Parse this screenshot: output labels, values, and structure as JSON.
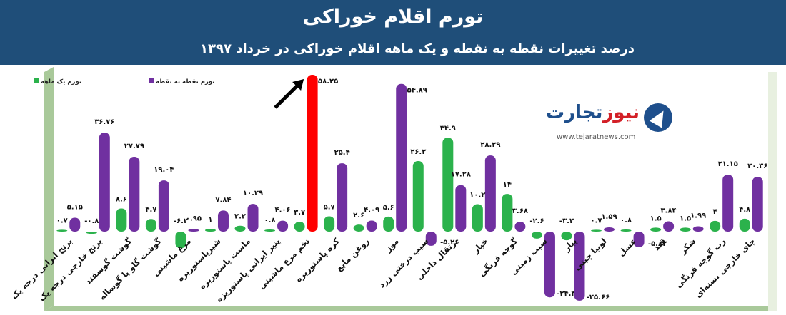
{
  "header": {
    "title": "تورم اقلام خوراکی",
    "subtitle": "درصد تغییرات نقطه به نقطه و یک ماهه اقلام خوراکی در خرداد ۱۳۹۷"
  },
  "logo": {
    "name_red": "نیوز",
    "name_blue": "تجارت",
    "url": "www.tejaratnews.com"
  },
  "colors": {
    "monthly": "#2bb24c",
    "point": "#7030a0",
    "highlight": "#ff0000",
    "header_bg": "#1f4e79",
    "floor": "#a9c99a"
  },
  "chart_data": {
    "type": "bar",
    "title": "",
    "legend_position": "top-left",
    "categories": [
      "برنج ایرانی درجه یک",
      "برنج خارجی درجه یک",
      "گوشت گوسفند",
      "گوشت گاو یا گوساله",
      "مرغ ماشینی",
      "شیرپاستوریزه",
      "ماست پاستوریزه",
      "پنیر ایرانی پاستوریزه",
      "تخم مرغ ماشینی",
      "کره پاستوریزه",
      "روغن مایع",
      "موز",
      "سیب درختی زرد",
      "پرتقال داخلی",
      "خیار",
      "گوجه فرنگی",
      "سیب زمینی",
      "پیاز",
      "لوبیا چیتی",
      "عسل",
      "قند",
      "شکر",
      "رب گوجه فرنگی",
      "چای خارجی بسته‌ای"
    ],
    "category_labels": [
      "برنج ایرانی درجه یک",
      "برنج خارجی درجه یک",
      "گوشت گوسفند",
      "گوشت گاو یا گوساله",
      "مرغ ماشینی",
      "شیرپاستوریزه",
      "ماست پاستوریزه",
      "پنیر ایرانی پاستوریزه",
      "تخم مرغ ماشینی",
      "کره پاستوریزه",
      "روغن مایع",
      "موز",
      "سیب درختی زرد",
      "پرتقال داخلی",
      "خیار",
      "گوجه فرنگی",
      "سیب زمینی",
      "پیاز",
      "لوبیا چیتی",
      "عسل",
      "قند",
      "شکر",
      "رب گوجه فرنگی",
      "چای خارجی بسته‌ای"
    ],
    "series": [
      {
        "name": "تورم یک ماهه",
        "values": [
          0.7,
          -0.8,
          8.6,
          4.7,
          -6.2,
          1,
          2.2,
          0.8,
          3.7,
          5.7,
          2.6,
          5.6,
          26.2,
          34.9,
          10.2,
          14,
          -2.6,
          -3.2,
          0.7,
          0.8,
          1.5,
          1.5,
          4,
          4.8
        ],
        "labels": [
          "۰.۷",
          "-۰.۸",
          "۸.۶",
          "۴.۷",
          "-۶.۲",
          "۱",
          "۲.۲",
          "۰.۸",
          "۳.۷",
          "۵.۷",
          "۲.۶",
          "۵.۶",
          "۲۶.۲",
          "۳۴.۹",
          "۱۰.۲",
          "۱۴",
          "-۲.۶",
          "-۳.۲",
          "۰.۷",
          "۰.۸",
          "۱.۵",
          "۱.۵",
          "۴",
          "۴.۸"
        ]
      },
      {
        "name": "تورم نقطه به نقطه",
        "values": [
          5.15,
          36.76,
          27.79,
          19.04,
          0.95,
          7.84,
          10.29,
          4.06,
          58.25,
          25.4,
          4.09,
          54.89,
          -5.26,
          17.28,
          28.29,
          3.68,
          -24.42,
          -25.66,
          1.59,
          -5.82,
          3.84,
          1.99,
          21.15,
          20.36
        ],
        "labels": [
          "۵.۱۵",
          "۳۶.۷۶",
          "۲۷.۷۹",
          "۱۹.۰۴",
          "۰.۹۵",
          "۷.۸۴",
          "۱۰.۲۹",
          "۴.۰۶",
          "۵۸.۲۵",
          "۲۵.۴",
          "۴.۰۹",
          "۵۴.۸۹",
          "-۵.۲۶",
          "۱۷.۲۸",
          "۲۸.۲۹",
          "۳.۶۸",
          "-۲۴.۴۲",
          "-۲۵.۶۶",
          "۱.۵۹",
          "-۵.۸۲",
          "۳.۸۴",
          "۱.۹۹",
          "۲۱.۱۵",
          "۲۰.۳۶"
        ]
      }
    ],
    "highlight": {
      "category_index": 8,
      "series_index": 1,
      "color": "#ff0000",
      "arrow": true
    },
    "ylim": [
      -28,
      60
    ],
    "grid": false
  }
}
